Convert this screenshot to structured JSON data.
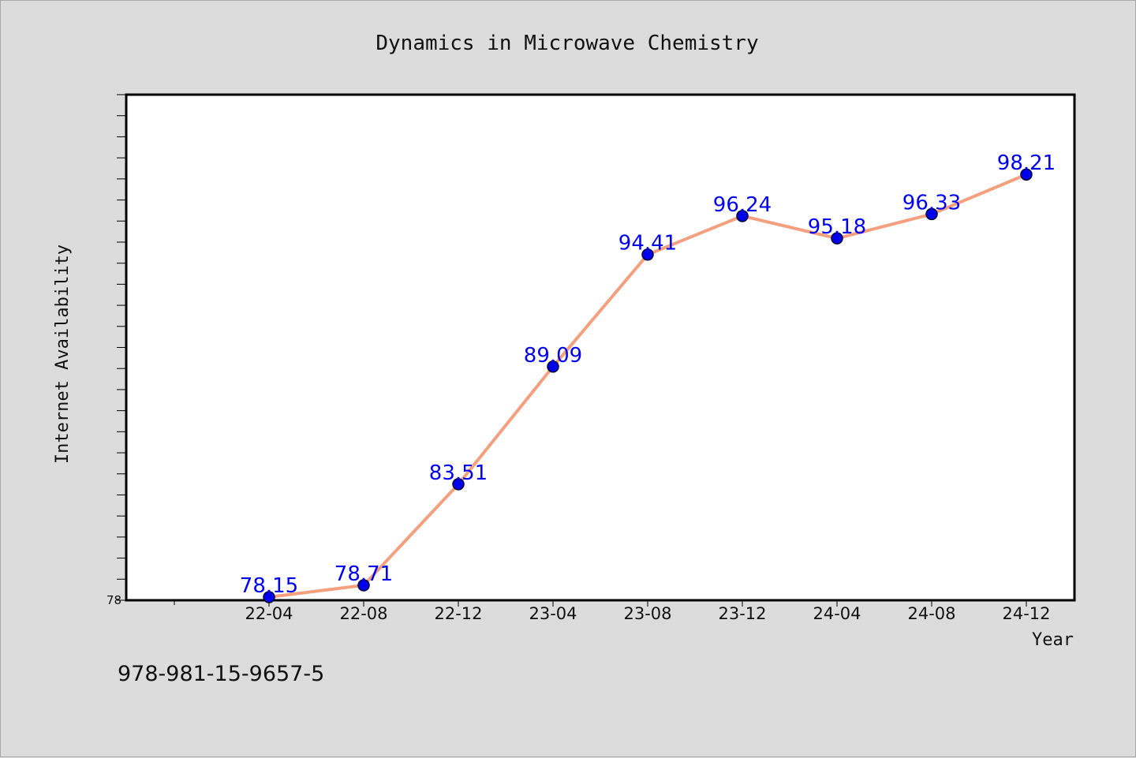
{
  "chart_data": {
    "type": "line",
    "title": "Dynamics in Microwave Chemistry",
    "xlabel": "Year",
    "ylabel": "Internet Availability",
    "categories": [
      "22-04",
      "22-08",
      "22-12",
      "23-04",
      "23-08",
      "23-12",
      "24-04",
      "24-08",
      "24-12"
    ],
    "series": [
      {
        "values": [
          78.15,
          78.71,
          83.51,
          89.09,
          94.41,
          96.24,
          95.18,
          96.33,
          98.21
        ],
        "labels": [
          "78.15",
          "78.71",
          "83.51",
          "89.09",
          "94.41",
          "96.24",
          "95.18",
          "96.33",
          "98.21"
        ],
        "line_color": "#f4a07f",
        "marker_color": "#0000ee"
      }
    ],
    "ylim": [
      78,
      102
    ],
    "ytick_labels": [
      "78"
    ],
    "grid": false,
    "legend": "none"
  },
  "footer": {
    "isbn": "978-981-15-9657-5"
  },
  "colors": {
    "background": "#dcdcdc",
    "plot_background": "#ffffff",
    "data_label": "#0000ee"
  }
}
